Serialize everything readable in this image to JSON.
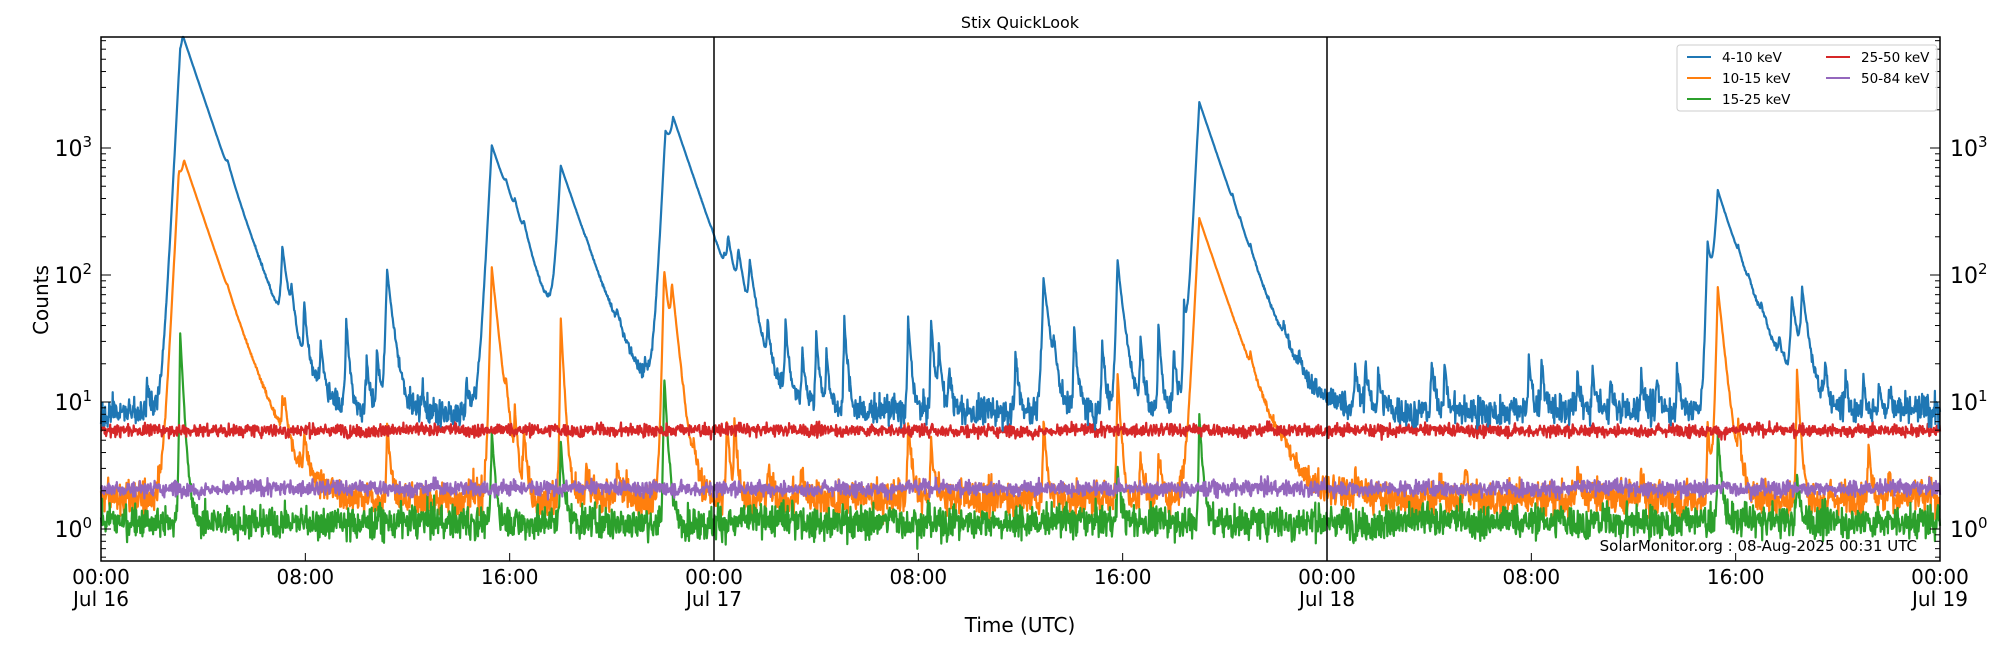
{
  "chart_data": {
    "type": "line",
    "title": "Stix QuickLook",
    "xlabel": "Time (UTC)",
    "ylabel": "Counts",
    "yscale": "log",
    "ylim": [
      0.55,
      7500
    ],
    "xlim_hours": [
      0,
      72
    ],
    "grid": false,
    "legend_position": "upper right",
    "annotation": "SolarMonitor.org : 08-Aug-2025 00:31 UTC",
    "x_ticks": [
      {
        "hour": 0,
        "label": "00:00",
        "sublabel": "Jul 16"
      },
      {
        "hour": 8,
        "label": "08:00",
        "sublabel": ""
      },
      {
        "hour": 16,
        "label": "16:00",
        "sublabel": ""
      },
      {
        "hour": 24,
        "label": "00:00",
        "sublabel": "Jul 17"
      },
      {
        "hour": 32,
        "label": "08:00",
        "sublabel": ""
      },
      {
        "hour": 40,
        "label": "16:00",
        "sublabel": ""
      },
      {
        "hour": 48,
        "label": "00:00",
        "sublabel": "Jul 18"
      },
      {
        "hour": 56,
        "label": "08:00",
        "sublabel": ""
      },
      {
        "hour": 64,
        "label": "16:00",
        "sublabel": ""
      },
      {
        "hour": 72,
        "label": "00:00",
        "sublabel": "Jul 19"
      }
    ],
    "day_boundaries_hours": [
      24,
      48
    ],
    "y_ticks": [
      {
        "value": 1,
        "base": "10",
        "exp": "0"
      },
      {
        "value": 10,
        "base": "10",
        "exp": "1"
      },
      {
        "value": 100,
        "base": "10",
        "exp": "2"
      },
      {
        "value": 1000,
        "base": "10",
        "exp": "3"
      }
    ],
    "series": [
      {
        "name": "4-10 keV",
        "color": "#1f77b4",
        "baseline": 8.5,
        "noise": 0.06,
        "peaks": [
          [
            1.8,
            15
          ],
          [
            3.1,
            4500
          ],
          [
            3.2,
            3800
          ],
          [
            4.95,
            110
          ],
          [
            7.1,
            130
          ],
          [
            7.45,
            40
          ],
          [
            7.95,
            50
          ],
          [
            8.6,
            25
          ],
          [
            9.6,
            45
          ],
          [
            10.4,
            22
          ],
          [
            10.8,
            25
          ],
          [
            11.2,
            110
          ],
          [
            12.6,
            12
          ],
          [
            14.3,
            15
          ],
          [
            15.3,
            1050
          ],
          [
            15.85,
            85
          ],
          [
            16.2,
            85
          ],
          [
            16.55,
            65
          ],
          [
            18.0,
            700
          ],
          [
            19.0,
            15
          ],
          [
            20.2,
            20
          ],
          [
            21.3,
            12
          ],
          [
            22.1,
            1300
          ],
          [
            22.4,
            900
          ],
          [
            23.9,
            14
          ],
          [
            24.4,
            30
          ],
          [
            24.55,
            110
          ],
          [
            24.95,
            95
          ],
          [
            25.4,
            90
          ],
          [
            26.1,
            30
          ],
          [
            26.8,
            40
          ],
          [
            27.45,
            25
          ],
          [
            28.0,
            35
          ],
          [
            28.4,
            25
          ],
          [
            29.1,
            45
          ],
          [
            31.6,
            45
          ],
          [
            32.5,
            45
          ],
          [
            32.8,
            28
          ],
          [
            33.2,
            18
          ],
          [
            35.8,
            25
          ],
          [
            36.9,
            95
          ],
          [
            37.3,
            20
          ],
          [
            38.1,
            40
          ],
          [
            39.2,
            30
          ],
          [
            39.8,
            130
          ],
          [
            40.7,
            30
          ],
          [
            41.4,
            40
          ],
          [
            42.0,
            25
          ],
          [
            42.4,
            50
          ],
          [
            43.0,
            2300
          ],
          [
            44.3,
            50
          ],
          [
            44.6,
            25
          ],
          [
            45.0,
            25
          ],
          [
            46.3,
            17
          ],
          [
            46.9,
            15
          ],
          [
            49.1,
            20
          ],
          [
            49.5,
            20
          ],
          [
            50.0,
            18
          ],
          [
            52.1,
            20
          ],
          [
            52.6,
            20
          ],
          [
            55.9,
            22
          ],
          [
            56.4,
            22
          ],
          [
            57.8,
            16
          ],
          [
            58.4,
            18
          ],
          [
            59.1,
            14
          ],
          [
            60.3,
            18
          ],
          [
            60.9,
            15
          ],
          [
            61.7,
            20
          ],
          [
            62.9,
            170
          ],
          [
            63.3,
            440
          ],
          [
            64.1,
            25
          ],
          [
            64.5,
            18
          ],
          [
            65.0,
            20
          ],
          [
            65.7,
            18
          ],
          [
            66.2,
            60
          ],
          [
            66.6,
            68
          ],
          [
            67.5,
            18
          ],
          [
            68.3,
            16
          ],
          [
            69.0,
            17
          ],
          [
            69.6,
            14
          ],
          [
            70.0,
            13
          ]
        ]
      },
      {
        "name": "10-15 keV",
        "color": "#ff7f0e",
        "baseline": 1.75,
        "noise": 0.07,
        "peaks": [
          [
            3.05,
            600
          ],
          [
            3.25,
            350
          ],
          [
            4.95,
            7
          ],
          [
            7.1,
            7
          ],
          [
            7.2,
            5
          ],
          [
            7.95,
            5
          ],
          [
            11.2,
            7
          ],
          [
            15.3,
            115
          ],
          [
            15.85,
            7
          ],
          [
            16.2,
            7
          ],
          [
            16.55,
            6
          ],
          [
            18.0,
            45
          ],
          [
            19.0,
            3
          ],
          [
            20.2,
            3
          ],
          [
            22.05,
            110
          ],
          [
            22.35,
            60
          ],
          [
            23.2,
            3.5
          ],
          [
            24.5,
            7
          ],
          [
            24.8,
            7
          ],
          [
            26.1,
            3
          ],
          [
            27.4,
            3
          ],
          [
            31.6,
            7
          ],
          [
            32.5,
            5
          ],
          [
            36.9,
            7
          ],
          [
            39.8,
            17
          ],
          [
            40.7,
            4
          ],
          [
            41.4,
            4
          ],
          [
            43.0,
            280
          ],
          [
            45.0,
            7
          ],
          [
            46.3,
            3
          ],
          [
            49.1,
            3
          ],
          [
            53.4,
            3
          ],
          [
            57.8,
            3
          ],
          [
            60.3,
            3
          ],
          [
            62.9,
            7
          ],
          [
            63.3,
            80
          ],
          [
            64.1,
            5
          ],
          [
            66.4,
            18
          ],
          [
            69.2,
            5
          ],
          [
            70.0,
            3
          ]
        ]
      },
      {
        "name": "15-25 keV",
        "color": "#2ca02c",
        "baseline": 1.15,
        "noise": 0.065,
        "peaks": [
          [
            3.1,
            35
          ],
          [
            15.3,
            6
          ],
          [
            18.0,
            5
          ],
          [
            22.05,
            16
          ],
          [
            39.8,
            3
          ],
          [
            43.0,
            8
          ],
          [
            63.3,
            6
          ],
          [
            66.4,
            2.5
          ]
        ]
      },
      {
        "name": "25-50 keV",
        "color": "#d62728",
        "baseline": 6.0,
        "noise": 0.025,
        "peaks": []
      },
      {
        "name": "50-84 keV",
        "color": "#9467bd",
        "baseline": 2.1,
        "noise": 0.03,
        "peaks": []
      }
    ]
  }
}
